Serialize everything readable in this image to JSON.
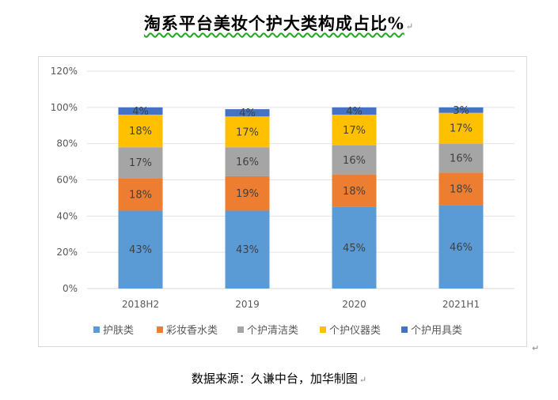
{
  "header": {
    "title": "淘系平台美妆个护大类构成占比%"
  },
  "footer": {
    "source": "数据来源：久谦中台，加华制图"
  },
  "chart_data": {
    "type": "bar",
    "stacked": true,
    "categories": [
      "2018H2",
      "2019",
      "2020",
      "2021H1"
    ],
    "series": [
      {
        "name": "护肤类",
        "values": [
          43,
          43,
          45,
          46
        ],
        "color": "#5b9bd5"
      },
      {
        "name": "彩妆香水类",
        "values": [
          18,
          19,
          18,
          18
        ],
        "color": "#ed7d31"
      },
      {
        "name": "个护清洁类",
        "values": [
          17,
          16,
          16,
          16
        ],
        "color": "#a5a5a5"
      },
      {
        "name": "个护仪器类",
        "values": [
          18,
          17,
          17,
          17
        ],
        "color": "#ffc000"
      },
      {
        "name": "个护用具类",
        "values": [
          4,
          4,
          4,
          3
        ],
        "color": "#4472c4"
      }
    ],
    "ylim": [
      0,
      120
    ],
    "yticks": [
      0,
      20,
      40,
      60,
      80,
      100,
      120
    ],
    "ytick_labels": [
      "0%",
      "20%",
      "40%",
      "60%",
      "80%",
      "100%",
      "120%"
    ],
    "data_labels": [
      [
        "43%",
        "43%",
        "45%",
        "46%"
      ],
      [
        "18%",
        "19%",
        "18%",
        "18%"
      ],
      [
        "17%",
        "16%",
        "16%",
        "16%"
      ],
      [
        "18%",
        "17%",
        "17%",
        "17%"
      ],
      [
        "4%",
        "4%",
        "4%",
        "3%"
      ]
    ],
    "grid": true,
    "legend_position": "bottom"
  }
}
